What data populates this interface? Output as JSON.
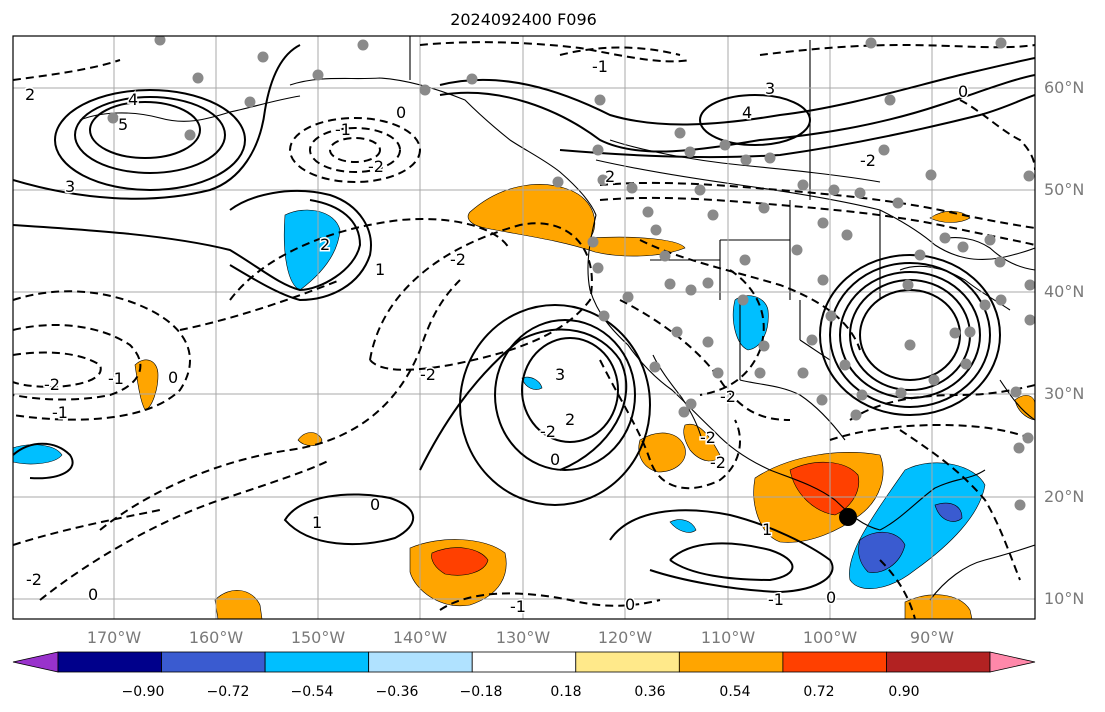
{
  "title": "2024092400 F096",
  "lat_labels": [
    "60°N",
    "50°N",
    "40°N",
    "30°N",
    "20°N",
    "10°N"
  ],
  "lon_labels": [
    "170°W",
    "160°W",
    "150°W",
    "140°W",
    "130°W",
    "120°W",
    "110°W",
    "100°W",
    "90°W"
  ],
  "colorbar": {
    "ticks": [
      "−0.90",
      "−0.72",
      "−0.54",
      "−0.36",
      "−0.18",
      "0.18",
      "0.36",
      "0.54",
      "0.72",
      "0.90"
    ],
    "colors": [
      "#9932cc",
      "#00008b",
      "#3a5bd0",
      "#00bfff",
      "#b0e2ff",
      "#ffffff",
      "#ffe98a",
      "#ffa500",
      "#ff4000",
      "#b22222",
      "#ff88aa"
    ]
  },
  "contour_labels": [
    "2",
    "3",
    "4",
    "5",
    "-1",
    "-2",
    "0",
    "-1",
    "-2",
    "1",
    "2",
    "-2",
    "-1",
    "-2",
    "0",
    "-2",
    "-2",
    "3",
    "-2",
    "2",
    "0",
    "-1",
    "0",
    "1",
    "0",
    "0",
    "-1",
    "-2",
    "2",
    "3",
    "4",
    "-1",
    "0",
    "-2",
    "1",
    "-2",
    "0"
  ]
}
